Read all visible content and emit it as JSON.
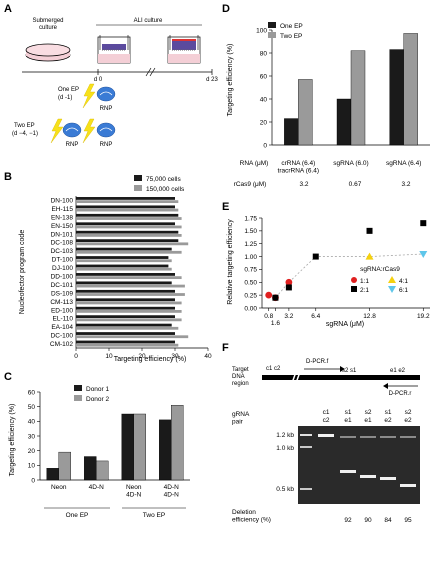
{
  "panels": {
    "A": {
      "label": "A",
      "submerged": "Submerged\nculture",
      "ali": "ALI culture",
      "d0": "d 0",
      "d23": "d 23",
      "one_ep": "One EP",
      "one_ep_day": "(d -1)",
      "two_ep": "Two EP",
      "two_ep_day": "(d −4, −1)",
      "rnp": "RNP"
    },
    "B": {
      "label": "B",
      "ylabel": "Nucleofector program code",
      "xlabel": "Targeting efficiency (%)",
      "legend": [
        "75,000 cells",
        "150,000 cells"
      ]
    },
    "C": {
      "label": "C",
      "ylabel": "Targeting efficiency (%)",
      "legend": [
        "Donor 1",
        "Donor 2"
      ],
      "group_one": "One EP",
      "group_two": "Two EP"
    },
    "D": {
      "label": "D",
      "ylabel": "Targeting efficiency (%)",
      "legend": [
        "One EP",
        "Two EP"
      ],
      "rna_label": "RNA (μM)",
      "rcas9_label": "rCas9 (μM)",
      "rcas9_values": [
        "3.2",
        "0.67",
        "3.2"
      ]
    },
    "E": {
      "label": "E",
      "ylabel": "Relative targeting efficiency",
      "xlabel": "sgRNA (μM)",
      "legend_title": "sgRNA:rCas9",
      "legend": [
        "1:1",
        "2:1",
        "4:1",
        "6:1"
      ]
    },
    "F": {
      "label": "F",
      "target_label": "Target\nDNA\nregion",
      "sites_left": "c1 c2",
      "pcr_f": "D-PCR.f",
      "sites_mid": "s2 s1",
      "sites_right": "e1 e2",
      "pcr_r": "D-PCR.r",
      "gel_pair_label": "gRNA\npair",
      "ladder": [
        "1.2 kb",
        "1.0 kb",
        "0.5 kb"
      ],
      "lanes": [
        {
          "top": "c1",
          "bottom": "c2",
          "eff": ""
        },
        {
          "top": "s1",
          "bottom": "e1",
          "eff": "92"
        },
        {
          "top": "s2",
          "bottom": "e1",
          "eff": "90"
        },
        {
          "top": "s1",
          "bottom": "e2",
          "eff": "84"
        },
        {
          "top": "s2",
          "bottom": "e2",
          "eff": "95"
        }
      ],
      "deletion_label": "Deletion\nefficiency (%)"
    }
  },
  "colors": {
    "dark": "#1a1a1a",
    "grey": "#9a9a9a",
    "pink": "#f4cfd6",
    "blue": "#3a7bd5"
  },
  "chart_data": [
    {
      "panel": "B",
      "type": "bar",
      "orientation": "horizontal",
      "categories": [
        "DN-100",
        "EH-115",
        "EN-138",
        "EN-150",
        "DN-101",
        "DC-108",
        "DC-103",
        "DT-100",
        "DJ-100",
        "DD-100",
        "DC-101",
        "DS-109",
        "CM-113",
        "ED-100",
        "EL-110",
        "EA-104",
        "DC-100",
        "CM-102"
      ],
      "series": [
        {
          "name": "75,000 cells",
          "values": [
            30,
            30,
            31,
            30,
            31,
            31,
            29,
            28,
            28,
            30,
            29,
            30,
            30,
            30,
            30,
            29,
            30,
            30
          ]
        },
        {
          "name": "150,000 cells",
          "values": [
            31,
            31,
            32,
            32,
            32,
            34,
            32,
            29,
            29,
            32,
            33,
            33,
            32,
            32,
            32,
            31,
            34,
            31
          ]
        }
      ],
      "xlabel": "Targeting efficiency (%)",
      "ylabel": "Nucleofector program code",
      "xlim": [
        0,
        40
      ],
      "xticks": [
        0,
        10,
        20,
        30,
        40
      ]
    },
    {
      "panel": "C",
      "type": "bar",
      "categories": [
        "Neon",
        "4D-N",
        "Neon\n4D-N",
        "4D-N\n4D-N"
      ],
      "series": [
        {
          "name": "Donor 1",
          "values": [
            8,
            16,
            45,
            41
          ]
        },
        {
          "name": "Donor 2",
          "values": [
            19,
            13,
            45,
            51
          ]
        }
      ],
      "ylabel": "Targeting efficiency (%)",
      "ylim": [
        0,
        60
      ],
      "yticks": [
        0,
        10,
        20,
        30,
        40,
        50,
        60
      ]
    },
    {
      "panel": "D",
      "type": "bar",
      "categories": [
        "crRNA (6.4)\ntracrRNA (6.4)",
        "sgRNA (6.0)",
        "sgRNA (6.4)"
      ],
      "series": [
        {
          "name": "One EP",
          "values": [
            23,
            40,
            83
          ]
        },
        {
          "name": "Two EP",
          "values": [
            57,
            82,
            97
          ]
        }
      ],
      "ylabel": "Targeting efficiency (%)",
      "ylim": [
        0,
        100
      ],
      "yticks": [
        0,
        20,
        40,
        60,
        80,
        100
      ]
    },
    {
      "panel": "E",
      "type": "scatter",
      "series": [
        {
          "name": "1:1",
          "color": "#e02020",
          "marker": "circle",
          "x": [
            0.8,
            1.6,
            3.2
          ],
          "y": [
            0.25,
            0.2,
            0.5
          ]
        },
        {
          "name": "2:1",
          "color": "#000000",
          "marker": "square",
          "x": [
            1.6,
            3.2,
            6.4,
            12.8,
            19.2
          ],
          "y": [
            0.2,
            0.4,
            1.0,
            1.5,
            1.65
          ]
        },
        {
          "name": "4:1",
          "color": "#f5d10f",
          "marker": "triangle-up",
          "x": [
            12.8
          ],
          "y": [
            1.0
          ]
        },
        {
          "name": "6:1",
          "color": "#5ec6ea",
          "marker": "triangle-down",
          "x": [
            19.2
          ],
          "y": [
            1.05
          ]
        }
      ],
      "dashed_path": {
        "x": [
          0.8,
          1.6,
          3.2,
          6.4,
          12.8,
          19.2
        ],
        "y": [
          0.25,
          0.2,
          0.5,
          1.0,
          1.0,
          1.05
        ]
      },
      "xlabel": "sgRNA (μM)",
      "ylabel": "Relative targeting efficiency",
      "xlim": [
        0,
        20
      ],
      "ylim": [
        0,
        1.75
      ],
      "xticks": [
        0.8,
        1.6,
        3.2,
        6.4,
        12.8,
        19.2
      ],
      "yticks": [
        0,
        0.25,
        0.5,
        0.75,
        1.0,
        1.25,
        1.5,
        1.75
      ]
    }
  ]
}
